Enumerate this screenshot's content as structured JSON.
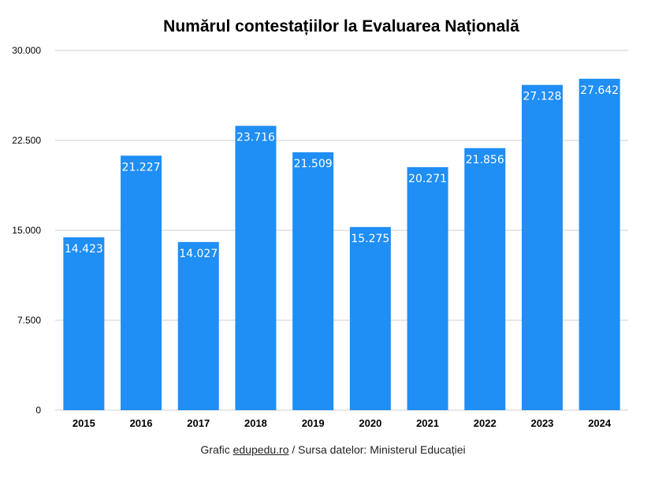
{
  "chart_data": {
    "type": "bar",
    "title": "Numărul contestațiilor la Evaluarea Națională",
    "xlabel": "",
    "ylabel": "",
    "categories": [
      "2015",
      "2016",
      "2017",
      "2018",
      "2019",
      "2020",
      "2021",
      "2022",
      "2023",
      "2024"
    ],
    "values": [
      14423,
      21227,
      14027,
      23716,
      21509,
      15275,
      20271,
      21856,
      27128,
      27642
    ],
    "value_labels": [
      "14.423",
      "21.227",
      "14.027",
      "23.716",
      "21.509",
      "15.275",
      "20.271",
      "21.856",
      "27.128",
      "27.642"
    ],
    "ylim": [
      0,
      30000
    ],
    "yticks": [
      0,
      7500,
      15000,
      22500,
      30000
    ],
    "ytick_labels": [
      "0",
      "7.500",
      "15.000",
      "22.500",
      "30.000"
    ],
    "grid": true,
    "bar_color": "#1f8ef5"
  },
  "source": {
    "prefix": "Grafic ",
    "link": "edupedu.ro",
    "suffix": " / Sursa datelor: Ministerul Educației"
  }
}
